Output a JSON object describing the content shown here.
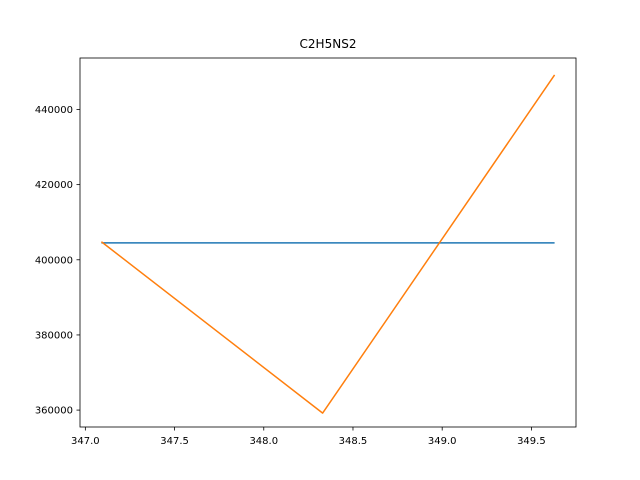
{
  "chart_data": {
    "type": "line",
    "title": "C2H5NS2",
    "xlabel": "",
    "ylabel": "",
    "xlim": [
      346.97,
      349.75
    ],
    "ylim": [
      355500,
      453700
    ],
    "grid": false,
    "legend": "none",
    "x_ticks": [
      {
        "value": 347.0,
        "label": "347.0"
      },
      {
        "value": 347.5,
        "label": "347.5"
      },
      {
        "value": 348.0,
        "label": "348.0"
      },
      {
        "value": 348.5,
        "label": "348.5"
      },
      {
        "value": 349.0,
        "label": "349.0"
      },
      {
        "value": 349.5,
        "label": "349.5"
      }
    ],
    "y_ticks": [
      {
        "value": 360000,
        "label": "360000"
      },
      {
        "value": 380000,
        "label": "380000"
      },
      {
        "value": 400000,
        "label": "400000"
      },
      {
        "value": 420000,
        "label": "420000"
      },
      {
        "value": 440000,
        "label": "440000"
      }
    ],
    "series": [
      {
        "color": "#1f77b4",
        "points": [
          {
            "x": 347.09,
            "y": 404500
          },
          {
            "x": 349.63,
            "y": 404500
          }
        ]
      },
      {
        "color": "#ff7f0e",
        "points": [
          {
            "x": 347.09,
            "y": 404800
          },
          {
            "x": 348.33,
            "y": 359200
          },
          {
            "x": 349.63,
            "y": 449200
          }
        ]
      }
    ]
  }
}
